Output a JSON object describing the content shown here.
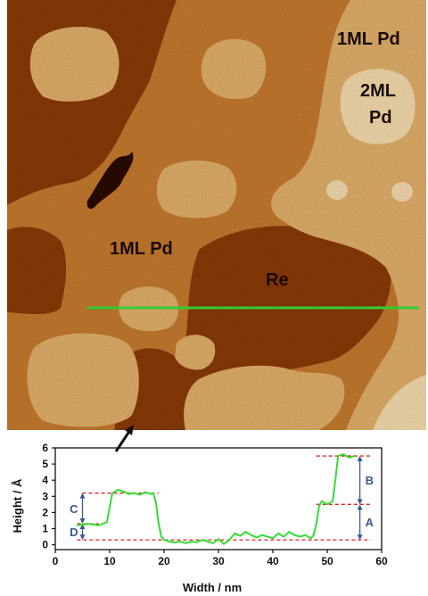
{
  "image": {
    "labels": {
      "top_right": "1ML Pd",
      "island_line1": "2ML",
      "island_line2": "Pd",
      "center_left": "1ML Pd",
      "re_region": "Re"
    },
    "colors": {
      "dark": "#8a3a06",
      "mid": "#c67a2e",
      "light": "#e2b06a",
      "bright": "#f6dcae",
      "pit": "#2a0a00",
      "profile_line": "#33cc33"
    }
  },
  "chart_data": {
    "type": "line",
    "xlabel": "Width / nm",
    "ylabel": "Height / Å",
    "xlim": [
      0,
      60
    ],
    "ylim": [
      -0.3,
      6
    ],
    "x_ticks": [
      0,
      10,
      20,
      30,
      40,
      50,
      60
    ],
    "y_ticks": [
      0,
      1,
      2,
      3,
      4,
      5,
      6
    ],
    "series": [
      {
        "color": "#33dd33",
        "x": [
          4,
          6,
          8,
          9.5,
          10.5,
          11.5,
          12.5,
          13.5,
          14.5,
          15.5,
          16.5,
          17.5,
          18,
          18.5,
          19,
          19.5,
          20,
          21,
          22,
          23,
          24,
          25,
          26,
          27,
          28,
          29,
          30,
          31,
          32,
          33,
          34,
          35,
          36,
          37,
          38,
          39,
          40,
          41,
          42,
          43,
          44,
          45,
          46,
          47,
          47.5,
          48,
          48.5,
          49,
          50,
          51,
          51.5,
          52,
          53,
          54,
          55
        ],
        "y": [
          1.2,
          1.3,
          1.2,
          1.4,
          3.2,
          3.4,
          3.3,
          3.15,
          3.2,
          3.1,
          3.25,
          3.15,
          3.2,
          2.6,
          1.3,
          0.5,
          0.3,
          0.2,
          0.15,
          0.2,
          0.1,
          0.2,
          0.15,
          0.3,
          0.2,
          0.1,
          0.35,
          0.05,
          0.3,
          0.7,
          0.55,
          0.8,
          0.6,
          0.45,
          0.6,
          0.5,
          0.4,
          0.7,
          0.5,
          0.8,
          0.6,
          0.5,
          0.6,
          0.4,
          0.6,
          1.3,
          2.4,
          2.7,
          2.5,
          2.7,
          4.0,
          5.5,
          5.6,
          5.4,
          5.5
        ]
      }
    ],
    "reference_levels": [
      5.5,
      2.5,
      3.2,
      1.3,
      0.3
    ],
    "markers": [
      {
        "label": "A",
        "x": 56,
        "from": 0.3,
        "to": 2.5
      },
      {
        "label": "B",
        "x": 56,
        "from": 2.5,
        "to": 5.5
      },
      {
        "label": "C",
        "x": 5,
        "from": 1.3,
        "to": 3.2
      },
      {
        "label": "D",
        "x": 5,
        "from": 0.3,
        "to": 1.3
      }
    ]
  }
}
